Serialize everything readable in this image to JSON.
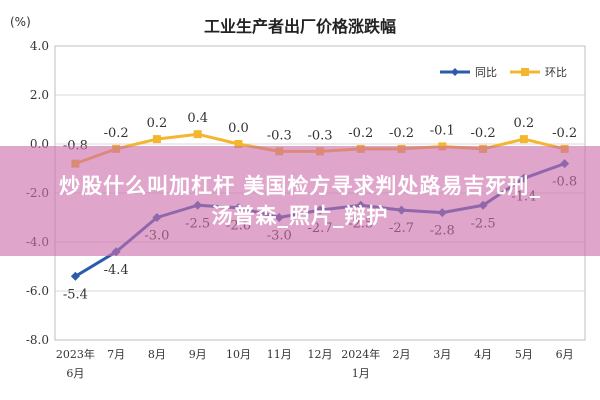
{
  "chart_data": {
    "type": "line",
    "title": "工业生产者出厂价格涨跌幅",
    "unit_label": "(%)",
    "categories": [
      "2023年6月",
      "7月",
      "8月",
      "9月",
      "10月",
      "11月",
      "12月",
      "2024年1月",
      "2月",
      "3月",
      "4月",
      "5月",
      "6月"
    ],
    "series": [
      {
        "name": "同比",
        "color": "#2a5caa",
        "values": [
          -5.4,
          -4.4,
          -3.0,
          -2.5,
          -2.6,
          -3.0,
          -2.7,
          -2.5,
          -2.7,
          -2.8,
          -2.5,
          -1.4,
          -0.8
        ],
        "labels": [
          "-5.4",
          "-4.4",
          "-3.0",
          "-2.5",
          "-2.6",
          "-3.0",
          "-2.7",
          "-2.5",
          "-2.7",
          "-2.8",
          "-2.5",
          "-1.4",
          "-0.8"
        ]
      },
      {
        "name": "环比",
        "color": "#f2b72e",
        "values": [
          -0.8,
          -0.2,
          0.2,
          0.4,
          0.0,
          -0.3,
          -0.3,
          -0.2,
          -0.2,
          -0.1,
          -0.2,
          0.2,
          -0.2
        ],
        "labels": [
          "-0.8",
          "-0.2",
          "0.2",
          "0.4",
          "0.0",
          "-0.3",
          "-0.3",
          "-0.2",
          "-0.2",
          "-0.1",
          "-0.2",
          "0.2",
          "-0.2"
        ]
      }
    ],
    "yticks": [
      "4.0",
      "2.0",
      "0.0",
      "-2.0",
      "-4.0",
      "-6.0",
      "-8.0"
    ],
    "ylim": [
      -8,
      4
    ],
    "grid": true,
    "legend_position": "top-right"
  },
  "overlay": {
    "line1": "炒股什么叫加杠杆 美国检方寻求判处路易吉死刑_",
    "line2": "汤普森_照片_辩护"
  }
}
